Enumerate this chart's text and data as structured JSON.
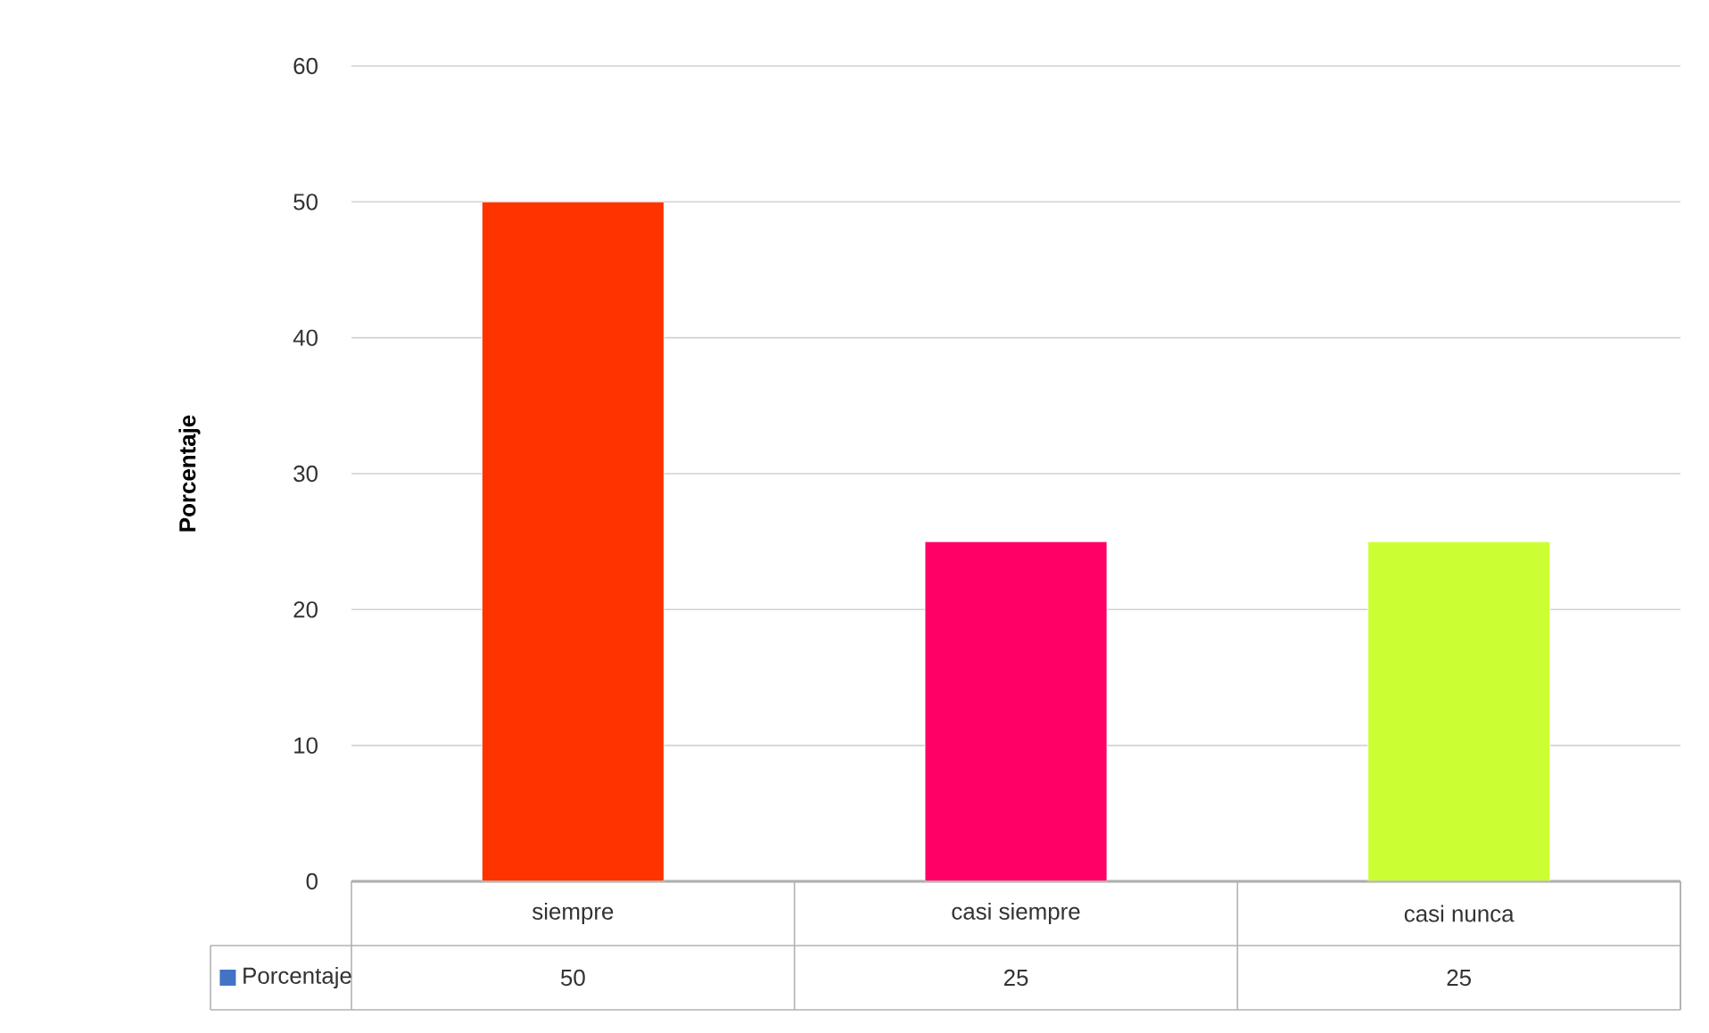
{
  "chart_data": {
    "type": "bar",
    "ylabel": "Porcentaje",
    "categories": [
      "siempre",
      "casi siempre",
      "casi nunca"
    ],
    "series": [
      {
        "name": "Porcentaje",
        "color": "#4472c4",
        "colors": [
          "#ff3300",
          "#ff0066",
          "#ccff33"
        ],
        "values": [
          50,
          25,
          25
        ]
      }
    ],
    "ylim": [
      0,
      60
    ],
    "yticks": [
      0,
      10,
      20,
      30,
      40,
      50,
      60
    ],
    "grid": "y",
    "legend": "bottom",
    "data_labels": true
  }
}
